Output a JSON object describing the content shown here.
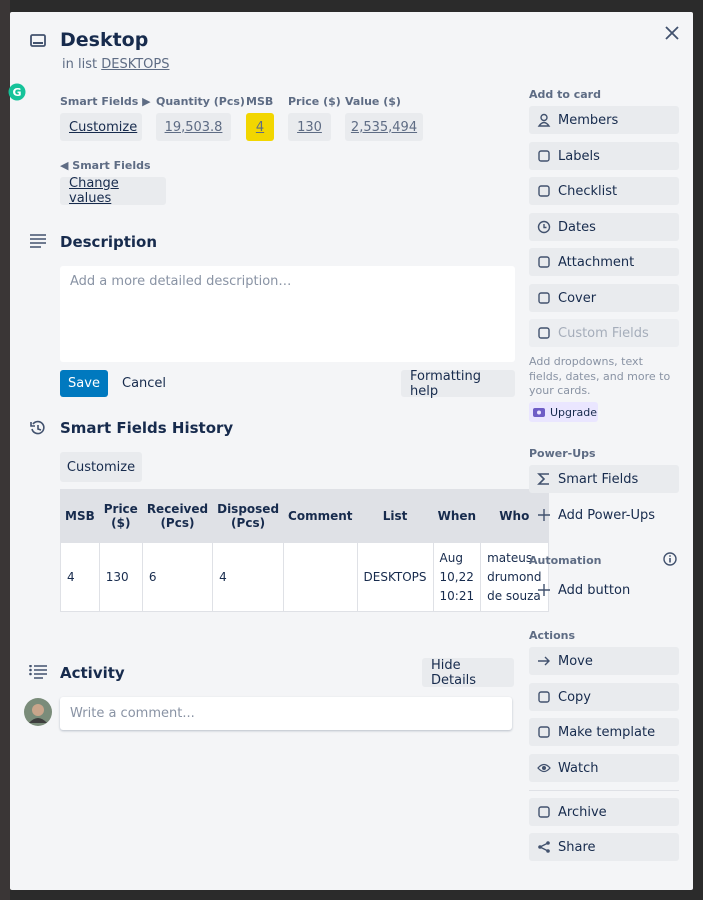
{
  "card": {
    "title": "Desktop",
    "list_prefix": "in list",
    "list_name": "DESKTOPS"
  },
  "smart_fields": {
    "label": "Smart Fields ▶",
    "customize": "Customize",
    "fields": [
      {
        "label": "Quantity (Pcs)",
        "value": "19,503.8"
      },
      {
        "label": "MSB",
        "value": "4"
      },
      {
        "label": "Price ($)",
        "value": "130"
      },
      {
        "label": "Value ($)",
        "value": "2,535,494"
      }
    ],
    "collapse_label": "◀ Smart Fields",
    "change_values": "Change values"
  },
  "description": {
    "title": "Description",
    "placeholder": "Add a more detailed description…",
    "save": "Save",
    "cancel": "Cancel",
    "formatting_help": "Formatting help"
  },
  "history": {
    "title": "Smart Fields History",
    "customize": "Customize",
    "table": {
      "columns": [
        "MSB",
        "Price ($)",
        "Received (Pcs)",
        "Disposed (Pcs)",
        "Comment",
        "List",
        "When",
        "Who"
      ],
      "rows": [
        [
          4,
          130,
          6,
          4,
          "",
          "DESKTOPS",
          "Aug 10,22 10:21",
          "mateus drumond de souza"
        ]
      ]
    }
  },
  "activity": {
    "title": "Activity",
    "hide_details": "Hide Details",
    "comment_placeholder": "Write a comment..."
  },
  "sidebar": {
    "add_to_card": {
      "title": "Add to card",
      "items": [
        "Members",
        "Labels",
        "Checklist",
        "Dates",
        "Attachment",
        "Cover",
        "Custom Fields"
      ],
      "note": "Add dropdowns, text fields, dates, and more to your cards.",
      "upgrade": "Upgrade"
    },
    "power_ups": {
      "title": "Power-Ups",
      "items": [
        "Smart Fields",
        "Add Power-Ups"
      ]
    },
    "automation": {
      "title": "Automation",
      "items": [
        "Add button"
      ]
    },
    "actions": {
      "title": "Actions",
      "items": [
        "Move",
        "Copy",
        "Make template",
        "Watch",
        "Archive",
        "Share"
      ]
    }
  }
}
